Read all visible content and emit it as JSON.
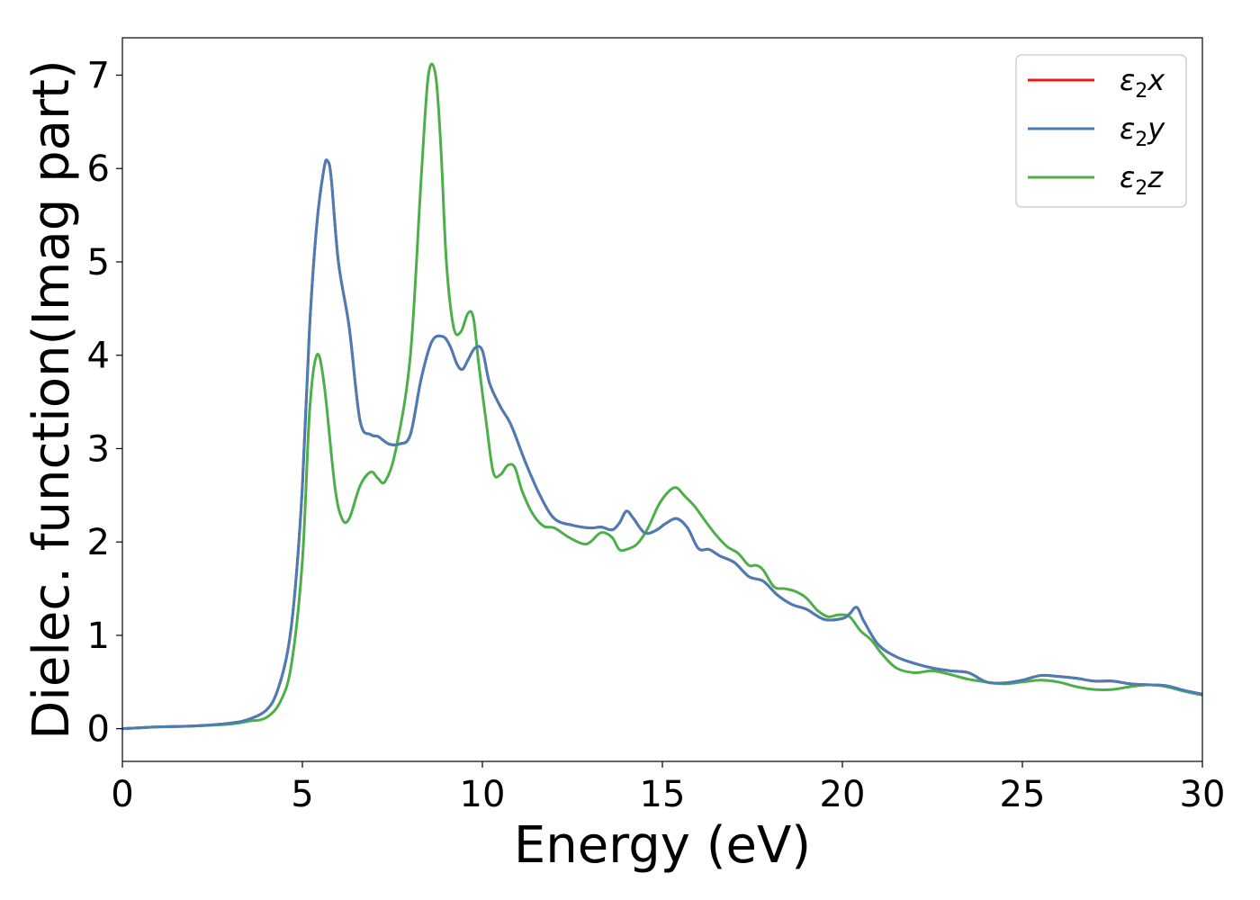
{
  "chart_data": {
    "type": "line",
    "title": "",
    "xlabel": "Energy (eV)",
    "ylabel": "Dielec. function(Imag part)",
    "xlim": [
      0,
      30
    ],
    "ylim": [
      -0.35,
      7.4
    ],
    "xticks": [
      0,
      5,
      10,
      15,
      20,
      25,
      30
    ],
    "yticks": [
      0,
      1,
      2,
      3,
      4,
      5,
      6,
      7
    ],
    "grid": false,
    "legend_position": "top-right",
    "series": [
      {
        "name": "ε₂x",
        "label_base": "ε",
        "label_sub": "2",
        "label_axis": "x",
        "color": "#e41a1c",
        "x": [
          0,
          1,
          2,
          3,
          3.5,
          4.0,
          4.3,
          4.6,
          4.8,
          5.0,
          5.2,
          5.4,
          5.6,
          5.7,
          5.8,
          6.0,
          6.3,
          6.6,
          6.9,
          7.1,
          7.4,
          7.7,
          8.0,
          8.3,
          8.6,
          8.9,
          9.1,
          9.3,
          9.45,
          9.6,
          9.8,
          10.0,
          10.2,
          10.5,
          10.8,
          11.2,
          11.6,
          12.0,
          12.5,
          13.0,
          13.3,
          13.6,
          13.8,
          14.0,
          14.2,
          14.5,
          14.8,
          15.1,
          15.4,
          15.7,
          16.0,
          16.3,
          16.6,
          17.0,
          17.4,
          17.8,
          18.2,
          18.6,
          19.0,
          19.5,
          20.0,
          20.2,
          20.4,
          20.6,
          21.0,
          21.5,
          22.0,
          22.5,
          23.0,
          23.5,
          24.0,
          24.5,
          25.0,
          25.5,
          26.0,
          26.5,
          27.0,
          27.5,
          28.0,
          28.5,
          29.0,
          29.5,
          30.0
        ],
        "y": [
          0,
          0.02,
          0.03,
          0.06,
          0.1,
          0.2,
          0.4,
          0.85,
          1.5,
          2.6,
          4.3,
          5.4,
          6.0,
          6.08,
          5.9,
          5.0,
          4.3,
          3.3,
          3.15,
          3.13,
          3.05,
          3.05,
          3.15,
          3.75,
          4.15,
          4.2,
          4.1,
          3.9,
          3.85,
          3.95,
          4.08,
          4.05,
          3.7,
          3.45,
          3.25,
          2.85,
          2.5,
          2.25,
          2.18,
          2.15,
          2.16,
          2.13,
          2.2,
          2.33,
          2.25,
          2.1,
          2.12,
          2.2,
          2.25,
          2.15,
          1.93,
          1.92,
          1.85,
          1.78,
          1.63,
          1.58,
          1.43,
          1.33,
          1.28,
          1.17,
          1.18,
          1.23,
          1.3,
          1.15,
          0.9,
          0.77,
          0.7,
          0.65,
          0.62,
          0.6,
          0.5,
          0.49,
          0.52,
          0.57,
          0.56,
          0.54,
          0.51,
          0.51,
          0.48,
          0.47,
          0.46,
          0.41,
          0.37
        ]
      },
      {
        "name": "ε₂y",
        "label_base": "ε",
        "label_sub": "2",
        "label_axis": "y",
        "color": "#4a7db5",
        "x": [
          0,
          1,
          2,
          3,
          3.5,
          4.0,
          4.3,
          4.6,
          4.8,
          5.0,
          5.2,
          5.4,
          5.6,
          5.7,
          5.8,
          6.0,
          6.3,
          6.6,
          6.9,
          7.1,
          7.4,
          7.7,
          8.0,
          8.3,
          8.6,
          8.9,
          9.1,
          9.3,
          9.45,
          9.6,
          9.8,
          10.0,
          10.2,
          10.5,
          10.8,
          11.2,
          11.6,
          12.0,
          12.5,
          13.0,
          13.3,
          13.6,
          13.8,
          14.0,
          14.2,
          14.5,
          14.8,
          15.1,
          15.4,
          15.7,
          16.0,
          16.3,
          16.6,
          17.0,
          17.4,
          17.8,
          18.2,
          18.6,
          19.0,
          19.5,
          20.0,
          20.2,
          20.4,
          20.6,
          21.0,
          21.5,
          22.0,
          22.5,
          23.0,
          23.5,
          24.0,
          24.5,
          25.0,
          25.5,
          26.0,
          26.5,
          27.0,
          27.5,
          28.0,
          28.5,
          29.0,
          29.5,
          30.0
        ],
        "y": [
          0,
          0.02,
          0.03,
          0.06,
          0.1,
          0.2,
          0.4,
          0.85,
          1.5,
          2.6,
          4.3,
          5.4,
          6.0,
          6.08,
          5.9,
          5.0,
          4.3,
          3.3,
          3.15,
          3.13,
          3.05,
          3.05,
          3.15,
          3.75,
          4.15,
          4.2,
          4.1,
          3.9,
          3.85,
          3.95,
          4.08,
          4.05,
          3.7,
          3.45,
          3.25,
          2.85,
          2.5,
          2.25,
          2.18,
          2.15,
          2.16,
          2.13,
          2.2,
          2.33,
          2.25,
          2.1,
          2.12,
          2.2,
          2.25,
          2.15,
          1.93,
          1.92,
          1.85,
          1.78,
          1.63,
          1.58,
          1.43,
          1.33,
          1.28,
          1.17,
          1.18,
          1.23,
          1.3,
          1.15,
          0.9,
          0.77,
          0.7,
          0.65,
          0.62,
          0.6,
          0.5,
          0.49,
          0.52,
          0.57,
          0.56,
          0.54,
          0.51,
          0.51,
          0.48,
          0.47,
          0.46,
          0.41,
          0.37
        ]
      },
      {
        "name": "ε₂z",
        "label_base": "ε",
        "label_sub": "2",
        "label_axis": "z",
        "color": "#4daf4a",
        "x": [
          0,
          1,
          2,
          3,
          3.5,
          4.0,
          4.4,
          4.7,
          5.0,
          5.2,
          5.4,
          5.6,
          5.9,
          6.1,
          6.3,
          6.6,
          6.9,
          7.1,
          7.3,
          7.6,
          8.0,
          8.3,
          8.5,
          8.7,
          8.85,
          9.0,
          9.2,
          9.4,
          9.6,
          9.75,
          9.9,
          10.1,
          10.3,
          10.5,
          10.7,
          10.9,
          11.1,
          11.4,
          11.7,
          12.0,
          12.4,
          12.8,
          13.0,
          13.3,
          13.6,
          13.8,
          14.0,
          14.3,
          14.6,
          14.9,
          15.2,
          15.4,
          15.6,
          15.9,
          16.2,
          16.5,
          16.8,
          17.1,
          17.4,
          17.6,
          17.8,
          18.1,
          18.4,
          18.7,
          19.0,
          19.3,
          19.6,
          19.9,
          20.2,
          20.5,
          20.8,
          21.1,
          21.5,
          22.0,
          22.5,
          23.0,
          23.5,
          24.0,
          24.5,
          25.0,
          25.5,
          26.0,
          26.5,
          27.0,
          27.5,
          28.0,
          28.5,
          29.0,
          29.5,
          30.0
        ],
        "y": [
          0,
          0.02,
          0.03,
          0.05,
          0.08,
          0.12,
          0.3,
          0.7,
          1.8,
          3.4,
          4.0,
          3.7,
          2.6,
          2.25,
          2.25,
          2.6,
          2.75,
          2.68,
          2.65,
          3.0,
          4.0,
          5.9,
          7.0,
          7.0,
          6.2,
          5.0,
          4.3,
          4.25,
          4.45,
          4.4,
          3.9,
          3.3,
          2.75,
          2.72,
          2.82,
          2.8,
          2.55,
          2.3,
          2.17,
          2.15,
          2.05,
          1.98,
          2.0,
          2.1,
          2.05,
          1.92,
          1.92,
          1.98,
          2.15,
          2.4,
          2.55,
          2.58,
          2.5,
          2.38,
          2.22,
          2.07,
          1.95,
          1.88,
          1.75,
          1.75,
          1.7,
          1.52,
          1.5,
          1.47,
          1.4,
          1.27,
          1.2,
          1.22,
          1.2,
          1.05,
          0.95,
          0.8,
          0.65,
          0.6,
          0.62,
          0.58,
          0.53,
          0.5,
          0.48,
          0.5,
          0.52,
          0.5,
          0.45,
          0.42,
          0.42,
          0.45,
          0.47,
          0.45,
          0.4,
          0.36
        ]
      }
    ]
  }
}
